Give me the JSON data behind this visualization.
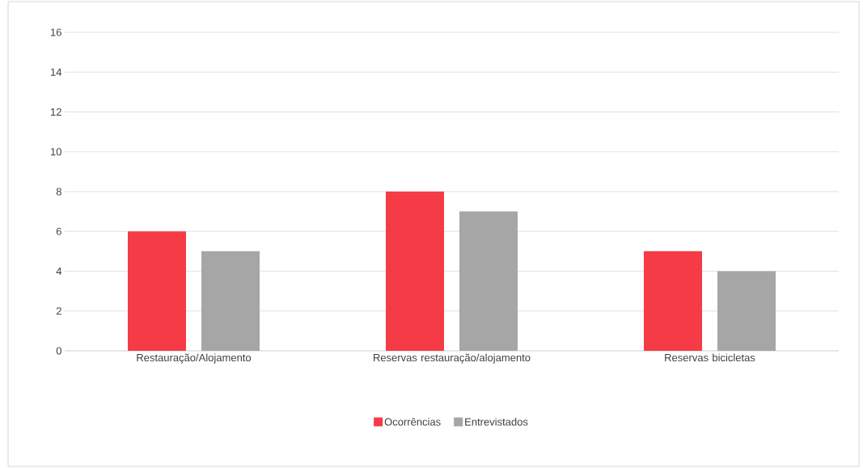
{
  "chart_data": {
    "type": "bar",
    "categories": [
      "Restauração/Alojamento",
      "Reservas restauração/alojamento",
      "Reservas bicicletas"
    ],
    "series": [
      {
        "name": "Ocorrências",
        "color": "#f53b45",
        "values": [
          6,
          8,
          5
        ]
      },
      {
        "name": "Entrevistados",
        "color": "#a6a6a6",
        "values": [
          5,
          7,
          4
        ]
      }
    ],
    "ylim": [
      0,
      16
    ],
    "yticks": [
      0,
      2,
      4,
      6,
      8,
      10,
      12,
      14,
      16
    ],
    "grid": "y",
    "legend": "bottom"
  }
}
